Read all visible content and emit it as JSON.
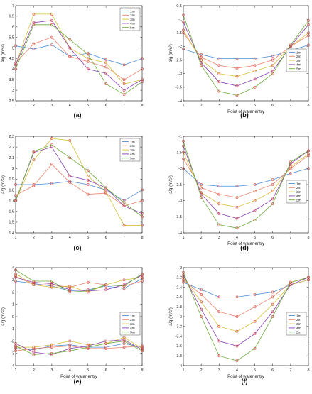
{
  "legend_labels": [
    "1m",
    "2m",
    "3m",
    "4m",
    "5m"
  ],
  "series_colors": [
    "#4f8fd6",
    "#e8836a",
    "#d6c23c",
    "#8a3fb0",
    "#6aaa3a"
  ],
  "marker_color": "#d8423a",
  "chart_data": [
    {
      "type": "line",
      "panel_label": "(a)",
      "xlabel": "",
      "ylabel": "a/g (m/s²)",
      "x": [
        1,
        2,
        3,
        4,
        5,
        6,
        7,
        8
      ],
      "xticks": [
        "1",
        "2",
        "3",
        "4",
        "5",
        "6",
        "7",
        "8"
      ],
      "xlim": [
        1,
        8
      ],
      "ylim": [
        2.5,
        7
      ],
      "yticks": [
        2.5,
        3,
        3.5,
        4,
        4.5,
        5,
        5.5,
        6,
        6.5,
        7
      ],
      "yticklabels": [
        "2.5",
        "3",
        "3.5",
        "4",
        "4.5",
        "5",
        "5.5",
        "6",
        "6.5",
        "7"
      ],
      "legend_position": "top-right",
      "series": [
        {
          "name": "1m",
          "values": [
            5.1,
            4.95,
            5.15,
            4.6,
            4.75,
            4.45,
            4.2,
            4.5
          ]
        },
        {
          "name": "2m",
          "values": [
            4.3,
            5.2,
            5.5,
            4.6,
            4.35,
            4.1,
            3.5,
            4.0
          ]
        },
        {
          "name": "3m",
          "values": [
            4.2,
            6.6,
            6.6,
            5.0,
            4.5,
            4.3,
            3.3,
            3.5
          ]
        },
        {
          "name": "4m",
          "values": [
            4.2,
            6.2,
            6.3,
            5.0,
            4.0,
            3.8,
            3.0,
            3.5
          ]
        },
        {
          "name": "5m",
          "values": [
            4.0,
            6.1,
            6.1,
            5.4,
            4.7,
            3.3,
            2.8,
            3.4
          ]
        }
      ]
    },
    {
      "type": "line",
      "panel_label": "(b)",
      "xlabel": "Point of water entry",
      "ylabel": "a/g (m/s²)",
      "x": [
        1,
        2,
        3,
        4,
        5,
        6,
        7,
        8
      ],
      "xticks": [
        "1",
        "2",
        "3",
        "4",
        "5",
        "6",
        "7",
        "8"
      ],
      "xlim": [
        1,
        8
      ],
      "ylim": [
        -4,
        -0.5
      ],
      "yticks": [
        -4,
        -3.5,
        -3,
        -2.5,
        -2,
        -1.5,
        -1,
        -0.5
      ],
      "yticklabels": [
        "-4",
        "-3.5",
        "-3",
        "-2.5",
        "-2",
        "-1.5",
        "-1",
        "-0.5"
      ],
      "legend_position": "right",
      "series": [
        {
          "name": "1m",
          "values": [
            -2.1,
            -2.3,
            -2.45,
            -2.45,
            -2.45,
            -2.35,
            -2.15,
            -1.95
          ]
        },
        {
          "name": "2m",
          "values": [
            -1.5,
            -2.4,
            -2.7,
            -2.8,
            -2.7,
            -2.5,
            -2.0,
            -1.6
          ]
        },
        {
          "name": "3m",
          "values": [
            -1.4,
            -2.5,
            -3.0,
            -3.1,
            -2.9,
            -2.7,
            -2.0,
            -1.5
          ]
        },
        {
          "name": "4m",
          "values": [
            -1.1,
            -2.6,
            -3.3,
            -3.45,
            -3.2,
            -2.9,
            -2.0,
            -1.2
          ]
        },
        {
          "name": "5m",
          "values": [
            -0.85,
            -2.7,
            -3.65,
            -3.8,
            -3.5,
            -3.0,
            -1.95,
            -1.05
          ]
        }
      ]
    },
    {
      "type": "line",
      "panel_label": "(c)",
      "xlabel": "",
      "ylabel": "a/g (m/s²)",
      "x": [
        1,
        2,
        3,
        4,
        5,
        6,
        7,
        8
      ],
      "xticks": [
        "1",
        "2",
        "3",
        "4",
        "5",
        "6",
        "7",
        "8"
      ],
      "xlim": [
        1,
        8
      ],
      "ylim": [
        1.4,
        2.3
      ],
      "yticks": [
        1.4,
        1.5,
        1.6,
        1.7,
        1.8,
        1.9,
        2.0,
        2.1,
        2.2,
        2.3
      ],
      "yticklabels": [
        "1.4",
        "1.5",
        "1.6",
        "1.7",
        "1.8",
        "1.9",
        "2",
        "2.1",
        "2.2",
        "2.3"
      ],
      "legend_position": "top-right",
      "series": [
        {
          "name": "1m",
          "values": [
            1.85,
            1.85,
            1.86,
            1.88,
            1.85,
            1.8,
            1.7,
            1.8
          ]
        },
        {
          "name": "2m",
          "values": [
            1.75,
            1.84,
            2.04,
            1.87,
            1.76,
            1.77,
            1.65,
            1.7
          ]
        },
        {
          "name": "3m",
          "values": [
            1.7,
            2.08,
            2.28,
            2.26,
            1.93,
            1.78,
            1.47,
            1.47
          ]
        },
        {
          "name": "4m",
          "values": [
            1.7,
            2.15,
            2.2,
            1.93,
            1.89,
            1.82,
            1.65,
            1.58
          ]
        },
        {
          "name": "5m",
          "values": [
            1.7,
            2.16,
            2.22,
            2.1,
            1.98,
            1.82,
            1.68,
            1.55
          ]
        }
      ]
    },
    {
      "type": "line",
      "panel_label": "(d)",
      "xlabel": "Point of water entry",
      "ylabel": "a/g (m/s²)",
      "x": [
        1,
        2,
        3,
        4,
        5,
        6,
        7,
        8
      ],
      "xticks": [
        "1",
        "2",
        "3",
        "4",
        "5",
        "6",
        "7",
        "8"
      ],
      "xlim": [
        1,
        8
      ],
      "ylim": [
        -4,
        -1
      ],
      "yticks": [
        -4,
        -3.5,
        -3,
        -2.5,
        -2,
        -1.5,
        -1
      ],
      "yticklabels": [
        "-4",
        "-3.5",
        "-3",
        "-2.5",
        "-2",
        "-1.5",
        "-1"
      ],
      "legend_position": "right",
      "series": [
        {
          "name": "1m",
          "values": [
            -2.0,
            -2.5,
            -2.55,
            -2.55,
            -2.5,
            -2.35,
            -2.15,
            -2.0
          ]
        },
        {
          "name": "2m",
          "values": [
            -1.7,
            -2.6,
            -2.8,
            -2.9,
            -2.7,
            -2.5,
            -2.0,
            -1.6
          ]
        },
        {
          "name": "3m",
          "values": [
            -1.5,
            -2.75,
            -3.1,
            -3.2,
            -3.0,
            -2.7,
            -1.95,
            -1.55
          ]
        },
        {
          "name": "4m",
          "values": [
            -1.3,
            -2.8,
            -3.4,
            -3.55,
            -3.3,
            -2.95,
            -1.85,
            -1.45
          ]
        },
        {
          "name": "5m",
          "values": [
            -1.15,
            -2.9,
            -3.75,
            -3.85,
            -3.6,
            -3.1,
            -1.8,
            -1.45
          ]
        }
      ]
    },
    {
      "type": "line",
      "panel_label": "(e)",
      "xlabel": "Point of water entry",
      "ylabel": "a/g (m/s²)",
      "x": [
        1,
        2,
        3,
        4,
        5,
        6,
        7,
        8
      ],
      "xticks": [
        "1",
        "2",
        "3",
        "4",
        "5",
        "6",
        "7",
        "8"
      ],
      "xlim": [
        1,
        8
      ],
      "ylim": [
        -4,
        4
      ],
      "yticks": [
        -4,
        -3,
        -2,
        -1,
        0,
        1,
        2,
        3,
        4
      ],
      "yticklabels": [
        "-4",
        "-3",
        "-2",
        "-1",
        "0",
        "1",
        "2",
        "3",
        "4"
      ],
      "legend_position": "center-right",
      "series": [
        {
          "name": "1m",
          "values": [
            2.9,
            2.7,
            2.5,
            2.1,
            2.2,
            2.5,
            2.3,
            3.1
          ]
        },
        {
          "name": "2m",
          "values": [
            3.3,
            2.6,
            2.6,
            2.4,
            2.8,
            2.6,
            2.5,
            2.9
          ]
        },
        {
          "name": "3m",
          "values": [
            3.5,
            2.6,
            2.4,
            2.5,
            2.0,
            2.6,
            3.0,
            3.2
          ]
        },
        {
          "name": "4m",
          "values": [
            3.2,
            2.8,
            2.7,
            2.2,
            2.1,
            2.2,
            2.6,
            3.4
          ]
        },
        {
          "name": "5m",
          "values": [
            3.8,
            2.9,
            2.9,
            2.0,
            2.1,
            2.6,
            2.5,
            3.5
          ]
        },
        {
          "name": "1m",
          "values": [
            -2.6,
            -2.7,
            -2.4,
            -2.3,
            -2.5,
            -2.5,
            -2.2,
            -2.5
          ]
        },
        {
          "name": "2m",
          "values": [
            -2.8,
            -2.6,
            -2.5,
            -2.4,
            -2.6,
            -2.6,
            -2.5,
            -2.4
          ]
        },
        {
          "name": "3m",
          "values": [
            -2.5,
            -2.5,
            -2.3,
            -2.0,
            -2.3,
            -2.2,
            -1.7,
            -2.6
          ]
        },
        {
          "name": "4m",
          "values": [
            -2.2,
            -2.9,
            -3.1,
            -2.6,
            -2.4,
            -2.0,
            -1.9,
            -2.7
          ]
        },
        {
          "name": "5m",
          "values": [
            -2.4,
            -3.1,
            -3.0,
            -2.8,
            -2.5,
            -2.2,
            -2.0,
            -2.8
          ]
        }
      ]
    },
    {
      "type": "line",
      "panel_label": "(f)",
      "xlabel": "Point of water entry",
      "ylabel": "a/g (m/s²)",
      "x": [
        1,
        2,
        3,
        4,
        5,
        6,
        7,
        8
      ],
      "xticks": [
        "1",
        "2",
        "3",
        "4",
        "5",
        "6",
        "7",
        "8"
      ],
      "xlim": [
        1,
        8
      ],
      "ylim": [
        -4,
        -2
      ],
      "yticks": [
        -4,
        -3.8,
        -3.6,
        -3.4,
        -3.2,
        -3,
        -2.8,
        -2.6,
        -2.4,
        -2.2,
        -2
      ],
      "yticklabels": [
        "-4",
        "-3.8",
        "-3.6",
        "-3.4",
        "-3.2",
        "-3",
        "-2.8",
        "-2.6",
        "-2.4",
        "-2.2",
        "-2"
      ],
      "legend_position": "right",
      "series": [
        {
          "name": "1m",
          "values": [
            -2.3,
            -2.45,
            -2.6,
            -2.6,
            -2.55,
            -2.5,
            -2.35,
            -2.25
          ]
        },
        {
          "name": "2m",
          "values": [
            -2.25,
            -2.55,
            -2.9,
            -3.0,
            -2.8,
            -2.6,
            -2.3,
            -2.2
          ]
        },
        {
          "name": "3m",
          "values": [
            -2.2,
            -2.7,
            -3.2,
            -3.3,
            -3.1,
            -2.75,
            -2.35,
            -2.25
          ]
        },
        {
          "name": "4m",
          "values": [
            -2.15,
            -2.85,
            -3.5,
            -3.6,
            -3.35,
            -2.9,
            -2.35,
            -2.2
          ]
        },
        {
          "name": "5m",
          "values": [
            -2.1,
            -3.0,
            -3.8,
            -3.9,
            -3.65,
            -3.0,
            -2.3,
            -2.2
          ]
        }
      ]
    }
  ]
}
